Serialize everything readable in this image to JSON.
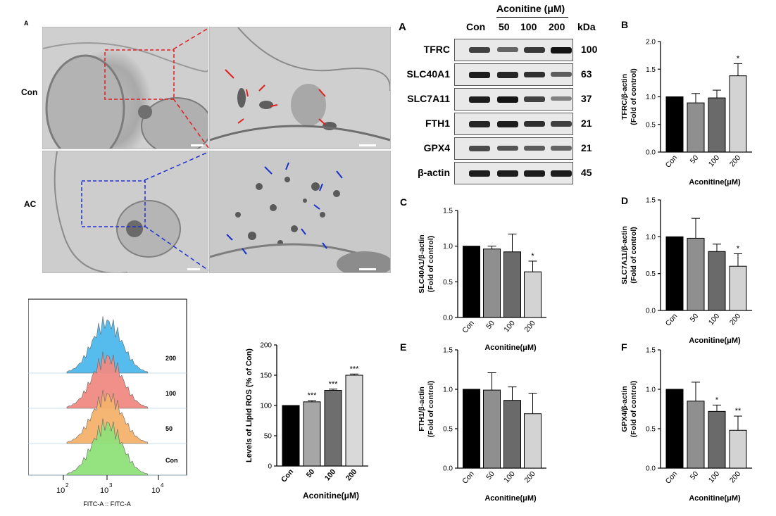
{
  "em": {
    "panel_letter": "A",
    "row_labels": [
      "Con",
      "AC"
    ]
  },
  "western_blot": {
    "panel_letter": "A",
    "treatment_label": "Aconitine (μM)",
    "lanes": [
      "Con",
      "50",
      "100",
      "200"
    ],
    "kda_header": "kDa",
    "proteins": [
      {
        "name": "TFRC",
        "kda": "100",
        "intensity": [
          0.75,
          0.55,
          0.8,
          1.0
        ]
      },
      {
        "name": "SLC40A1",
        "kda": "63",
        "intensity": [
          0.95,
          0.9,
          0.85,
          0.6
        ]
      },
      {
        "name": "SLC7A11",
        "kda": "37",
        "intensity": [
          0.95,
          1.0,
          0.75,
          0.4
        ]
      },
      {
        "name": "FTH1",
        "kda": "21",
        "intensity": [
          0.9,
          0.95,
          0.85,
          0.75
        ]
      },
      {
        "name": "GPX4",
        "kda": "21",
        "intensity": [
          0.7,
          0.65,
          0.6,
          0.55
        ]
      },
      {
        "name": "β-actin",
        "kda": "45",
        "intensity": [
          0.95,
          0.95,
          0.95,
          0.95
        ]
      }
    ]
  },
  "flow": {
    "xlabel": "FITC-A :: FITC-A",
    "tick_labels": [
      "10",
      "10",
      "10"
    ],
    "tick_exponents": [
      "2",
      "3",
      "4"
    ],
    "series": [
      {
        "label": "200",
        "color": "#4db8ec"
      },
      {
        "label": "100",
        "color": "#f08a82"
      },
      {
        "label": "50",
        "color": "#f6b26b"
      },
      {
        "label": "Con",
        "color": "#8fe07a"
      }
    ]
  },
  "chart_data": [
    {
      "id": "lipid-ros",
      "type": "bar",
      "panel_letter": "",
      "categories": [
        "Con",
        "50",
        "100",
        "200"
      ],
      "values": [
        100,
        106,
        125,
        150
      ],
      "errors": [
        0,
        2,
        2,
        2
      ],
      "sig": [
        "",
        "***",
        "***",
        "***"
      ],
      "ylabel": [
        "Levels of Lipid ROS (% of Con)"
      ],
      "xlabel": "Aconitine(μM)",
      "ylim": [
        0,
        200
      ],
      "yticks": [
        0,
        50,
        100,
        150,
        200
      ],
      "ytick_labels": [
        "0",
        "50",
        "100",
        "150",
        "200"
      ],
      "colors": [
        "#000000",
        "#a6a6a6",
        "#6e6e6e",
        "#d9d9d9"
      ]
    },
    {
      "id": "tfrc",
      "type": "bar",
      "panel_letter": "B",
      "categories": [
        "Con",
        "50",
        "100",
        "200"
      ],
      "values": [
        1.0,
        0.89,
        0.98,
        1.38
      ],
      "errors": [
        0,
        0.17,
        0.14,
        0.22
      ],
      "sig": [
        "",
        "",
        "",
        "*"
      ],
      "ylabel": [
        "TFRC/β-actin",
        "(Fold of control)"
      ],
      "xlabel": "Aconitine(μM)",
      "ylim": [
        0,
        2.0
      ],
      "yticks": [
        0,
        0.5,
        1.0,
        1.5,
        2.0
      ],
      "ytick_labels": [
        "0.0",
        "0.5",
        "1.0",
        "1.5",
        "2.0"
      ],
      "colors": [
        "#000000",
        "#8f8f8f",
        "#6a6a6a",
        "#d3d3d3"
      ]
    },
    {
      "id": "slc40a1",
      "type": "bar",
      "panel_letter": "C",
      "categories": [
        "Con",
        "50",
        "100",
        "200"
      ],
      "values": [
        1.0,
        0.96,
        0.92,
        0.64
      ],
      "errors": [
        0,
        0.04,
        0.25,
        0.15
      ],
      "sig": [
        "",
        "",
        "",
        "*"
      ],
      "ylabel": [
        "SLC40A1/β-actin",
        "(Fold of control)"
      ],
      "xlabel": "Aconitine(μM)",
      "ylim": [
        0,
        1.5
      ],
      "yticks": [
        0,
        0.5,
        1.0,
        1.5
      ],
      "ytick_labels": [
        "0.0",
        "0.5",
        "1.0",
        "1.5"
      ],
      "colors": [
        "#000000",
        "#8f8f8f",
        "#6a6a6a",
        "#d3d3d3"
      ]
    },
    {
      "id": "slc7a11",
      "type": "bar",
      "panel_letter": "D",
      "categories": [
        "Con",
        "50",
        "100",
        "200"
      ],
      "values": [
        1.0,
        0.98,
        0.8,
        0.6
      ],
      "errors": [
        0,
        0.27,
        0.1,
        0.17
      ],
      "sig": [
        "",
        "",
        "",
        "*"
      ],
      "ylabel": [
        "SLC7A11/β-actin",
        "(Fold of control)"
      ],
      "xlabel": "Aconitine(μM)",
      "ylim": [
        0,
        1.5
      ],
      "yticks": [
        0,
        0.5,
        1.0,
        1.5
      ],
      "ytick_labels": [
        "0.0",
        "0.5",
        "1.0",
        "1.5"
      ],
      "colors": [
        "#000000",
        "#8f8f8f",
        "#6a6a6a",
        "#d3d3d3"
      ]
    },
    {
      "id": "fth1",
      "type": "bar",
      "panel_letter": "E",
      "categories": [
        "Con",
        "50",
        "100",
        "200"
      ],
      "values": [
        1.0,
        0.99,
        0.86,
        0.69
      ],
      "errors": [
        0,
        0.22,
        0.17,
        0.26
      ],
      "sig": [
        "",
        "",
        "",
        ""
      ],
      "ylabel": [
        "FTH1/β-actin",
        "(Fold of control)"
      ],
      "xlabel": "Aconitine(μM)",
      "ylim": [
        0,
        1.5
      ],
      "yticks": [
        0,
        0.5,
        1.0,
        1.5
      ],
      "ytick_labels": [
        "0.0",
        "0.5",
        "1.0",
        "1.5"
      ],
      "colors": [
        "#000000",
        "#8f8f8f",
        "#6a6a6a",
        "#d3d3d3"
      ]
    },
    {
      "id": "gpx4",
      "type": "bar",
      "panel_letter": "F",
      "categories": [
        "Con",
        "50",
        "100",
        "200"
      ],
      "values": [
        1.0,
        0.85,
        0.72,
        0.48
      ],
      "errors": [
        0,
        0.24,
        0.08,
        0.18
      ],
      "sig": [
        "",
        "",
        "*",
        "**"
      ],
      "ylabel": [
        "GPX4/β-actin",
        "(Fold of control)"
      ],
      "xlabel": "Aconitine(μM)",
      "ylim": [
        0,
        1.5
      ],
      "yticks": [
        0,
        0.5,
        1.0,
        1.5
      ],
      "ytick_labels": [
        "0.0",
        "0.5",
        "1.0",
        "1.5"
      ],
      "colors": [
        "#000000",
        "#8f8f8f",
        "#6a6a6a",
        "#d3d3d3"
      ]
    }
  ]
}
